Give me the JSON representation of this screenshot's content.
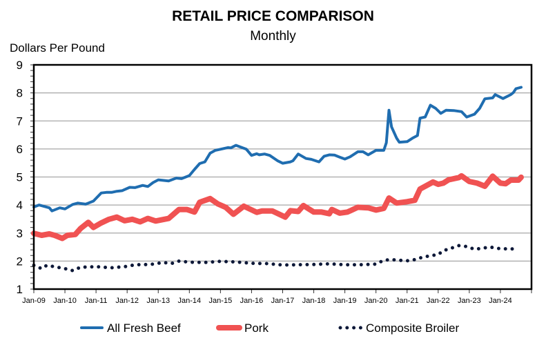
{
  "chart_data": {
    "type": "line",
    "title": "RETAIL PRICE COMPARISON",
    "subtitle": "Monthly",
    "ylabel": "Dollars Per Pound",
    "xlabel": "",
    "ylim": [
      1,
      9
    ],
    "yticks": [
      "1",
      "2",
      "3",
      "4",
      "5",
      "6",
      "7",
      "8",
      "9"
    ],
    "xlim": [
      "2009-01",
      "2025-01"
    ],
    "xticks": [
      "Jan-09",
      "Jan-10",
      "Jan-11",
      "Jan-12",
      "Jan-13",
      "Jan-14",
      "Jan-15",
      "Jan-16",
      "Jan-17",
      "Jan-18",
      "Jan-19",
      "Jan-20",
      "Jan-21",
      "Jan-22",
      "Jan-23",
      "Jan-24"
    ],
    "grid": true,
    "legend": "bottom",
    "series": [
      {
        "name": "All Fresh Beef",
        "color": "#1f6db0",
        "style": "solid",
        "x": [
          "2009-01",
          "2009-03",
          "2009-07",
          "2009-08",
          "2009-11",
          "2010-01",
          "2010-04",
          "2010-06",
          "2010-09",
          "2010-12",
          "2011-03",
          "2011-05",
          "2011-07",
          "2011-09",
          "2011-11",
          "2012-02",
          "2012-04",
          "2012-07",
          "2012-09",
          "2012-11",
          "2013-01",
          "2013-05",
          "2013-08",
          "2013-10",
          "2014-01",
          "2014-03",
          "2014-05",
          "2014-07",
          "2014-09",
          "2014-11",
          "2015-01",
          "2015-04",
          "2015-05",
          "2015-07",
          "2015-11",
          "2016-01",
          "2016-03",
          "2016-04",
          "2016-06",
          "2016-08",
          "2016-11",
          "2017-01",
          "2017-04",
          "2017-05",
          "2017-07",
          "2017-10",
          "2017-12",
          "2018-03",
          "2018-05",
          "2018-07",
          "2018-09",
          "2018-11",
          "2019-01",
          "2019-03",
          "2019-06",
          "2019-08",
          "2019-10",
          "2020-01",
          "2020-04",
          "2020-05",
          "2020-06",
          "2020-07",
          "2020-09",
          "2020-10",
          "2021-01",
          "2021-03",
          "2021-05",
          "2021-06",
          "2021-08",
          "2021-10",
          "2021-12",
          "2022-02",
          "2022-04",
          "2022-07",
          "2022-10",
          "2022-12",
          "2023-03",
          "2023-05",
          "2023-07",
          "2023-10",
          "2023-11",
          "2024-02",
          "2024-05",
          "2024-06",
          "2024-07",
          "2024-09"
        ],
        "values": [
          3.93,
          4.0,
          3.9,
          3.79,
          3.9,
          3.86,
          4.02,
          4.07,
          4.03,
          4.14,
          4.43,
          4.45,
          4.45,
          4.49,
          4.51,
          4.63,
          4.62,
          4.7,
          4.66,
          4.8,
          4.9,
          4.86,
          4.96,
          4.94,
          5.05,
          5.27,
          5.48,
          5.54,
          5.85,
          5.95,
          5.99,
          6.05,
          6.04,
          6.13,
          5.99,
          5.77,
          5.83,
          5.79,
          5.82,
          5.77,
          5.58,
          5.49,
          5.54,
          5.58,
          5.82,
          5.66,
          5.63,
          5.54,
          5.74,
          5.79,
          5.78,
          5.71,
          5.64,
          5.72,
          5.9,
          5.9,
          5.79,
          5.95,
          5.95,
          6.22,
          7.38,
          6.79,
          6.38,
          6.24,
          6.26,
          6.38,
          6.48,
          7.1,
          7.14,
          7.56,
          7.45,
          7.27,
          7.38,
          7.37,
          7.33,
          7.14,
          7.24,
          7.45,
          7.79,
          7.82,
          7.94,
          7.8,
          7.94,
          8.01,
          8.15,
          8.2
        ]
      },
      {
        "name": "Pork",
        "color": "#f05252",
        "style": "thick",
        "x": [
          "2009-01",
          "2009-04",
          "2009-07",
          "2009-09",
          "2009-12",
          "2010-02",
          "2010-05",
          "2010-07",
          "2010-10",
          "2010-12",
          "2011-03",
          "2011-06",
          "2011-09",
          "2011-12",
          "2012-03",
          "2012-06",
          "2012-09",
          "2012-12",
          "2013-05",
          "2013-09",
          "2013-12",
          "2014-03",
          "2014-05",
          "2014-09",
          "2014-12",
          "2015-03",
          "2015-06",
          "2015-10",
          "2016-03",
          "2016-05",
          "2016-09",
          "2017-02",
          "2017-04",
          "2017-07",
          "2017-09",
          "2018-01",
          "2018-04",
          "2018-07",
          "2018-08",
          "2018-11",
          "2019-02",
          "2019-06",
          "2019-10",
          "2020-01",
          "2020-04",
          "2020-06",
          "2020-09",
          "2021-01",
          "2021-04",
          "2021-06",
          "2021-11",
          "2022-01",
          "2022-03",
          "2022-05",
          "2022-09",
          "2022-10",
          "2023-01",
          "2023-04",
          "2023-07",
          "2023-10",
          "2024-01",
          "2024-03",
          "2024-05",
          "2024-08",
          "2024-09"
        ],
        "values": [
          2.99,
          2.92,
          2.97,
          2.92,
          2.81,
          2.92,
          2.95,
          3.16,
          3.38,
          3.2,
          3.36,
          3.49,
          3.57,
          3.44,
          3.49,
          3.4,
          3.52,
          3.43,
          3.52,
          3.84,
          3.84,
          3.75,
          4.1,
          4.23,
          4.04,
          3.92,
          3.67,
          3.96,
          3.74,
          3.79,
          3.79,
          3.57,
          3.8,
          3.77,
          3.98,
          3.75,
          3.75,
          3.69,
          3.84,
          3.71,
          3.75,
          3.92,
          3.9,
          3.82,
          3.88,
          4.25,
          4.07,
          4.12,
          4.17,
          4.57,
          4.82,
          4.74,
          4.78,
          4.9,
          4.98,
          5.04,
          4.84,
          4.78,
          4.67,
          5.03,
          4.78,
          4.76,
          4.89,
          4.89,
          4.99
        ]
      },
      {
        "name": "Composite Broiler",
        "color": "#0d1838",
        "style": "dotted",
        "x": [
          "2009-01",
          "2009-04",
          "2009-06",
          "2010-01",
          "2010-04",
          "2010-07",
          "2011-01",
          "2011-07",
          "2012-01",
          "2012-04",
          "2012-10",
          "2013-03",
          "2013-06",
          "2013-09",
          "2014-01",
          "2014-07",
          "2015-01",
          "2015-07",
          "2016-01",
          "2016-07",
          "2017-01",
          "2017-07",
          "2018-01",
          "2018-07",
          "2019-01",
          "2019-07",
          "2020-01",
          "2020-04",
          "2020-07",
          "2021-01",
          "2021-04",
          "2021-07",
          "2021-10",
          "2022-01",
          "2022-03",
          "2022-06",
          "2022-09",
          "2022-12",
          "2023-03",
          "2023-06",
          "2023-09",
          "2024-01",
          "2024-08"
        ],
        "values": [
          1.85,
          1.73,
          1.85,
          1.73,
          1.66,
          1.78,
          1.8,
          1.76,
          1.81,
          1.87,
          1.88,
          1.95,
          1.91,
          2.0,
          1.96,
          1.95,
          1.99,
          1.97,
          1.92,
          1.91,
          1.86,
          1.87,
          1.88,
          1.9,
          1.87,
          1.87,
          1.89,
          2.03,
          2.05,
          2.01,
          2.05,
          2.14,
          2.19,
          2.23,
          2.37,
          2.46,
          2.55,
          2.52,
          2.42,
          2.46,
          2.5,
          2.44,
          2.43
        ]
      }
    ]
  }
}
